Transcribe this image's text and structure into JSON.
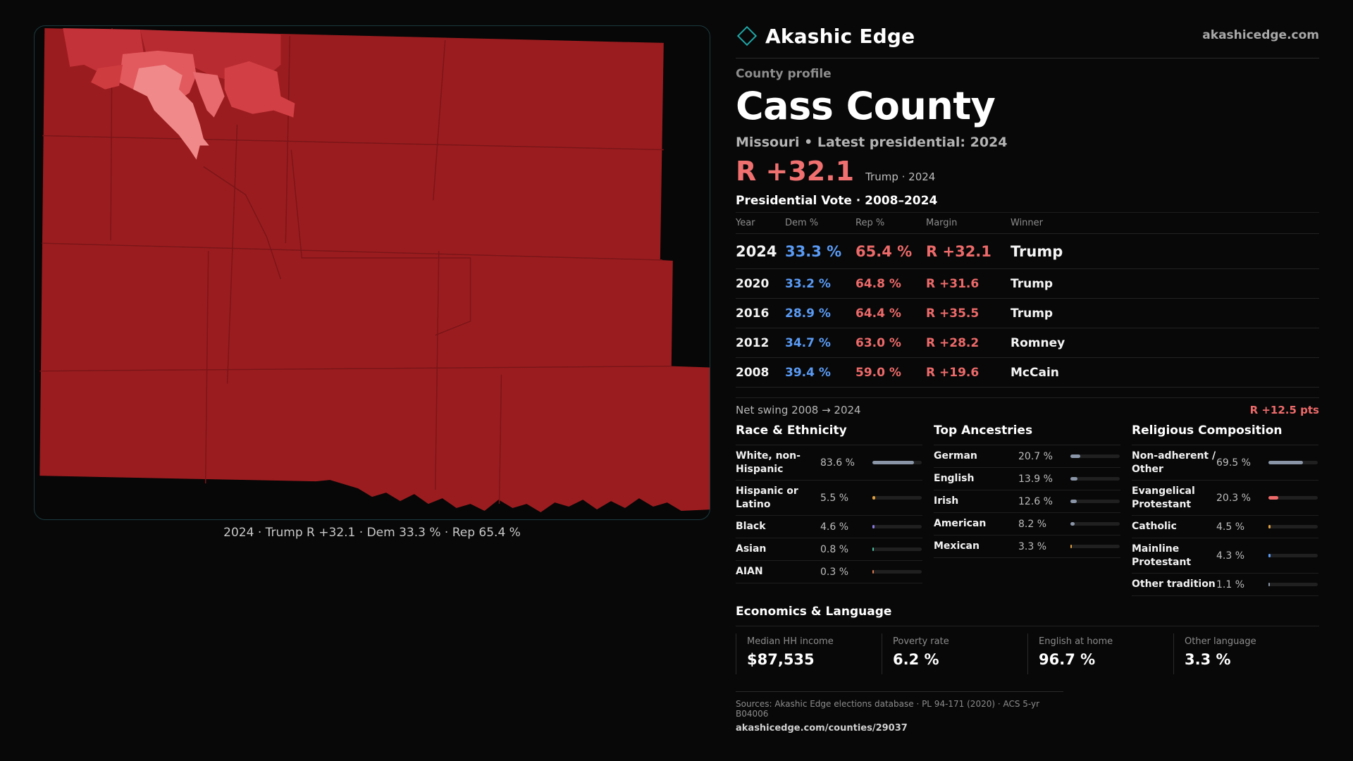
{
  "map": {
    "caption": "2024 · Trump R +32.1 · Dem 33.3 % · Rep 65.4 %",
    "colors": {
      "base": "#9b1c1f",
      "medium": "#c33238",
      "light": "#e25a5e",
      "lightest": "#f08a8a",
      "border": "#7a1518"
    }
  },
  "brand": {
    "name": "Akashic Edge",
    "url": "akashicedge.com",
    "logo_icon": "diamond-outline-icon",
    "accent": "#1fa6a6"
  },
  "profile": {
    "eyebrow": "County profile",
    "title": "Cass County",
    "subtitle": "Missouri • Latest presidential: 2024",
    "margin": "R +32.1",
    "margin_note": "Trump · 2024"
  },
  "vote": {
    "title": "Presidential Vote · 2008–2024",
    "headers": {
      "year": "Year",
      "dem": "Dem %",
      "rep": "Rep %",
      "margin": "Margin",
      "winner": "Winner"
    },
    "rows": [
      {
        "year": "2024",
        "dem": "33.3 %",
        "rep": "65.4 %",
        "margin": "R +32.1",
        "winner": "Trump"
      },
      {
        "year": "2020",
        "dem": "33.2 %",
        "rep": "64.8 %",
        "margin": "R +31.6",
        "winner": "Trump"
      },
      {
        "year": "2016",
        "dem": "28.9 %",
        "rep": "64.4 %",
        "margin": "R +35.5",
        "winner": "Trump"
      },
      {
        "year": "2012",
        "dem": "34.7 %",
        "rep": "63.0 %",
        "margin": "R +28.2",
        "winner": "Romney"
      },
      {
        "year": "2008",
        "dem": "39.4 %",
        "rep": "59.0 %",
        "margin": "R +19.6",
        "winner": "McCain"
      }
    ],
    "net_swing_label": "Net swing 2008 → 2024",
    "net_swing_value": "R +12.5 pts",
    "colors": {
      "dem": "#5a9bf5",
      "rep": "#ee6a6a"
    }
  },
  "race": {
    "title": "Race & Ethnicity",
    "items": [
      {
        "label": "White, non-Hispanic",
        "value": "83.6 %",
        "share": 0.836,
        "color": "#8a96a8"
      },
      {
        "label": "Hispanic or Latino",
        "value": "5.5 %",
        "share": 0.055,
        "color": "#e0a040"
      },
      {
        "label": "Black",
        "value": "4.6 %",
        "share": 0.046,
        "color": "#8a7ae0"
      },
      {
        "label": "Asian",
        "value": "0.8 %",
        "share": 0.008,
        "color": "#4cc0a0"
      },
      {
        "label": "AIAN",
        "value": "0.3 %",
        "share": 0.003,
        "color": "#e07a50"
      }
    ]
  },
  "ancestry": {
    "title": "Top Ancestries",
    "items": [
      {
        "label": "German",
        "value": "20.7 %",
        "share": 0.207,
        "color": "#8a96a8"
      },
      {
        "label": "English",
        "value": "13.9 %",
        "share": 0.139,
        "color": "#8a96a8"
      },
      {
        "label": "Irish",
        "value": "12.6 %",
        "share": 0.126,
        "color": "#8a96a8"
      },
      {
        "label": "American",
        "value": "8.2 %",
        "share": 0.082,
        "color": "#8a96a8"
      },
      {
        "label": "Mexican",
        "value": "3.3 %",
        "share": 0.033,
        "color": "#e0a040"
      }
    ]
  },
  "religion": {
    "title": "Religious Composition",
    "items": [
      {
        "label": "Non-adherent / Other",
        "value": "69.5 %",
        "share": 0.695,
        "color": "#8a96a8"
      },
      {
        "label": "Evangelical Protestant",
        "value": "20.3 %",
        "share": 0.203,
        "color": "#ee6a6a"
      },
      {
        "label": "Catholic",
        "value": "4.5 %",
        "share": 0.045,
        "color": "#e0a040"
      },
      {
        "label": "Mainline Protestant",
        "value": "4.3 %",
        "share": 0.043,
        "color": "#5a9bf5"
      },
      {
        "label": "Other tradition",
        "value": "1.1 %",
        "share": 0.011,
        "color": "#8a96a8"
      }
    ]
  },
  "economics": {
    "title": "Economics & Language",
    "cards": [
      {
        "label": "Median HH income",
        "value": "$87,535"
      },
      {
        "label": "Poverty rate",
        "value": "6.2 %"
      },
      {
        "label": "English at home",
        "value": "96.7 %"
      },
      {
        "label": "Other language",
        "value": "3.3 %"
      }
    ]
  },
  "sources": {
    "line": "Sources: Akashic Edge elections database · PL 94-171 (2020) · ACS 5-yr B04006",
    "url": "akashicedge.com/counties/29037"
  }
}
